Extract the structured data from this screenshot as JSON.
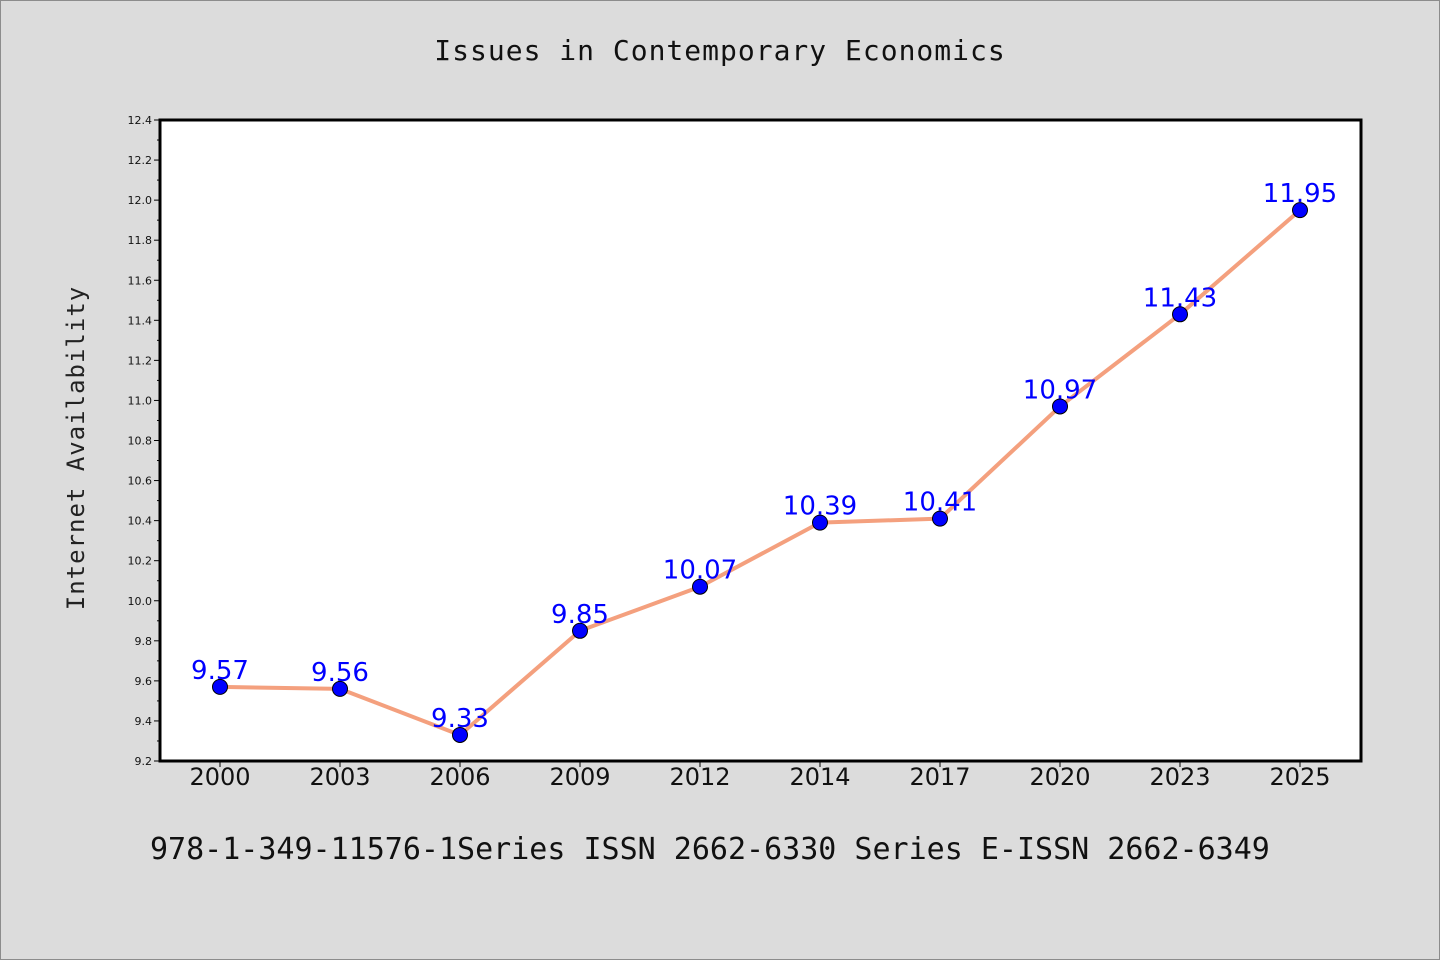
{
  "chart_data": {
    "type": "line",
    "title": "Issues in Contemporary Economics",
    "xlabel": "",
    "ylabel": "Internet Availability",
    "categories": [
      "2000",
      "2003",
      "2006",
      "2009",
      "2012",
      "2014",
      "2017",
      "2020",
      "2023",
      "2025"
    ],
    "series": [
      {
        "values": [
          9.57,
          9.56,
          9.33,
          9.85,
          10.07,
          10.39,
          10.41,
          10.97,
          11.43,
          11.95
        ],
        "line_color": "#f4a07e",
        "marker_color": "#0000ff"
      }
    ],
    "data_labels": [
      "9.57",
      "9.56",
      "9.33",
      "9.85",
      "10.07",
      "10.39",
      "10.41",
      "10.97",
      "11.43",
      "11.95"
    ],
    "ylim": [
      9.2,
      12.4
    ],
    "yticks": [
      "9.2",
      "9.4",
      "9.6",
      "9.8",
      "10.0",
      "10.2",
      "10.4",
      "10.6",
      "10.8",
      "11.0",
      "11.2",
      "11.4",
      "11.6",
      "11.8",
      "12.0",
      "12.2",
      "12.4"
    ],
    "grid": false,
    "legend": "none"
  },
  "footer": "978-1-349-11576-1Series ISSN 2662-6330 Series E-ISSN 2662-6349"
}
